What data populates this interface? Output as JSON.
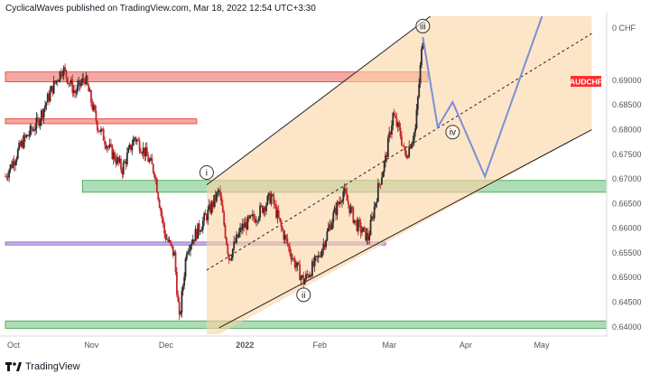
{
  "header": {
    "publisher_line": "CyclicalWaves published on TradingView.com, Mar 18, 2022 12:54 UTC+3:30"
  },
  "footer": {
    "brand": "TradingView"
  },
  "colors": {
    "bull": "#2c2c2c",
    "bear": "#c62828",
    "zone_red": "#f28b82",
    "zone_green": "#8fd19e",
    "zone_purple": "#b39ddb",
    "channel_fill": "#fbd3a4",
    "projection": "#7b8fd6",
    "badge": "#ff2d2d"
  },
  "chart_data": {
    "type": "candlestick",
    "symbol_badge": "AUDCHF",
    "currency_label": "0 CHF",
    "y_axis": {
      "ylim": [
        0.6385,
        0.703
      ],
      "ticks": [
        "0.69000",
        "0.68500",
        "0.68000",
        "0.67500",
        "0.67000",
        "0.66500",
        "0.66000",
        "0.65500",
        "0.65000",
        "0.64500",
        "0.64000"
      ],
      "tick_values": [
        0.69,
        0.685,
        0.68,
        0.675,
        0.67,
        0.665,
        0.66,
        0.655,
        0.65,
        0.645,
        0.64
      ]
    },
    "x_axis": {
      "labels": [
        "Oct",
        "Nov",
        "Dec",
        "2022",
        "Feb",
        "Mar",
        "Apr",
        "May"
      ],
      "label_dates": [
        "2021-10-01",
        "2021-11-01",
        "2021-12-01",
        "2022-01-01",
        "2022-02-01",
        "2022-03-01",
        "2022-04-01",
        "2022-05-01"
      ],
      "range": [
        "2021-10-01",
        "2022-05-31"
      ]
    },
    "price_path": [
      {
        "date": "2021-10-01",
        "price": 0.6705
      },
      {
        "date": "2021-10-08",
        "price": 0.6775
      },
      {
        "date": "2021-10-14",
        "price": 0.6815
      },
      {
        "date": "2021-10-20",
        "price": 0.6885
      },
      {
        "date": "2021-10-24",
        "price": 0.6925
      },
      {
        "date": "2021-10-29",
        "price": 0.6875
      },
      {
        "date": "2021-11-02",
        "price": 0.6905
      },
      {
        "date": "2021-11-07",
        "price": 0.681
      },
      {
        "date": "2021-11-12",
        "price": 0.676
      },
      {
        "date": "2021-11-17",
        "price": 0.672
      },
      {
        "date": "2021-11-22",
        "price": 0.6785
      },
      {
        "date": "2021-11-26",
        "price": 0.6755
      },
      {
        "date": "2021-11-30",
        "price": 0.6715
      },
      {
        "date": "2021-12-04",
        "price": 0.659
      },
      {
        "date": "2021-12-08",
        "price": 0.6545
      },
      {
        "date": "2021-12-10",
        "price": 0.6412
      },
      {
        "date": "2021-12-13",
        "price": 0.656
      },
      {
        "date": "2021-12-18",
        "price": 0.66
      },
      {
        "date": "2021-12-22",
        "price": 0.6635
      },
      {
        "date": "2021-12-26",
        "price": 0.6675
      },
      {
        "date": "2021-12-30",
        "price": 0.654
      },
      {
        "date": "2022-01-04",
        "price": 0.66
      },
      {
        "date": "2022-01-10",
        "price": 0.6625
      },
      {
        "date": "2022-01-16",
        "price": 0.6665
      },
      {
        "date": "2022-01-20",
        "price": 0.66
      },
      {
        "date": "2022-01-25",
        "price": 0.6535
      },
      {
        "date": "2022-01-29",
        "price": 0.6492
      },
      {
        "date": "2022-02-04",
        "price": 0.654
      },
      {
        "date": "2022-02-10",
        "price": 0.6625
      },
      {
        "date": "2022-02-14",
        "price": 0.6675
      },
      {
        "date": "2022-02-19",
        "price": 0.661
      },
      {
        "date": "2022-02-24",
        "price": 0.658
      },
      {
        "date": "2022-02-28",
        "price": 0.668
      },
      {
        "date": "2022-03-03",
        "price": 0.674
      },
      {
        "date": "2022-03-06",
        "price": 0.683
      },
      {
        "date": "2022-03-09",
        "price": 0.679
      },
      {
        "date": "2022-03-11",
        "price": 0.6745
      },
      {
        "date": "2022-03-15",
        "price": 0.68
      },
      {
        "date": "2022-03-18",
        "price": 0.6988
      }
    ],
    "zones": [
      {
        "name": "resistance-zone",
        "color": "red",
        "from_date": "2021-10-01",
        "to_date": "2022-03-20",
        "y_top": 0.6917,
        "y_bottom": 0.6897,
        "extends_right": true
      },
      {
        "name": "minor-resistance",
        "color": "red",
        "from_date": "2021-10-01",
        "to_date": "2021-12-17",
        "y_top": 0.6822,
        "y_bottom": 0.6812,
        "extends_right": false
      },
      {
        "name": "support-zone",
        "color": "green",
        "from_date": "2021-11-01",
        "to_date": "2022-05-31",
        "y_top": 0.6697,
        "y_bottom": 0.6673,
        "extends_right": true
      },
      {
        "name": "purple-line",
        "color": "purple",
        "from_date": "2021-10-01",
        "to_date": "2022-03-03",
        "y_top": 0.6572,
        "y_bottom": 0.6566,
        "extends_right": false
      },
      {
        "name": "bottom-zone",
        "color": "green",
        "from_date": "2021-10-01",
        "to_date": "2022-05-31",
        "y_top": 0.6412,
        "y_bottom": 0.6397,
        "extends_right": true
      }
    ],
    "channel": {
      "upper": [
        {
          "date": "2021-12-21",
          "price": 0.6688
        },
        {
          "date": "2022-03-21",
          "price": 0.703
        }
      ],
      "mid": [
        {
          "date": "2021-12-21",
          "price": 0.6515
        },
        {
          "date": "2022-05-25",
          "price": 0.6995
        }
      ],
      "lower": [
        {
          "date": "2021-12-26",
          "price": 0.6398
        },
        {
          "date": "2022-05-25",
          "price": 0.68
        }
      ],
      "shade": {
        "from_date": "2021-12-21",
        "to_date": "2022-05-25"
      }
    },
    "projection_path": [
      {
        "date": "2022-03-18",
        "price": 0.6988
      },
      {
        "date": "2022-03-24",
        "price": 0.6805
      },
      {
        "date": "2022-03-30",
        "price": 0.6856
      },
      {
        "date": "2022-04-12",
        "price": 0.6705
      },
      {
        "date": "2022-05-05",
        "price": 0.703
      }
    ],
    "wave_labels": [
      {
        "label": "i",
        "date": "2021-12-21",
        "price": 0.6713
      },
      {
        "label": "ii",
        "date": "2022-01-29",
        "price": 0.6465
      },
      {
        "label": "iii",
        "date": "2022-03-18",
        "price": 0.701
      },
      {
        "label": "iv",
        "date": "2022-03-30",
        "price": 0.6795
      }
    ]
  }
}
